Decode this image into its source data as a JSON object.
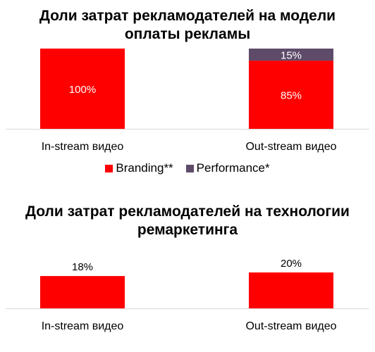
{
  "chart_data": [
    {
      "type": "bar",
      "stacked": true,
      "title": "Доли затрат рекламодателей на модели оплаты рекламы",
      "title_lines": [
        "Доли затрат рекламодателей на модели",
        "оплаты рекламы"
      ],
      "categories": [
        "In-stream видео",
        "Out-stream видео"
      ],
      "series": [
        {
          "name": "Branding**",
          "values": [
            100,
            85
          ],
          "labels": [
            "100%",
            "85%"
          ],
          "color": "#ff0000",
          "label_color": "#ffffff"
        },
        {
          "name": "Performance*",
          "values": [
            0,
            15
          ],
          "labels": [
            "",
            "15%"
          ],
          "color": "#5e4b6a",
          "label_color": "#ffffff"
        }
      ],
      "ylim": [
        0,
        100
      ],
      "grid": false,
      "legend_position": "bottom"
    },
    {
      "type": "bar",
      "title": "Доли затрат рекламодателей на технологии ремаркетинга",
      "title_lines": [
        "Доли затрат рекламодателей на технологии",
        "ремаркетинга"
      ],
      "categories": [
        "In-stream видео",
        "Out-stream видео"
      ],
      "values": [
        18,
        20
      ],
      "labels": [
        "18%",
        "20%"
      ],
      "color": "#ff0000",
      "label_color": "#000000",
      "grid": false
    }
  ]
}
